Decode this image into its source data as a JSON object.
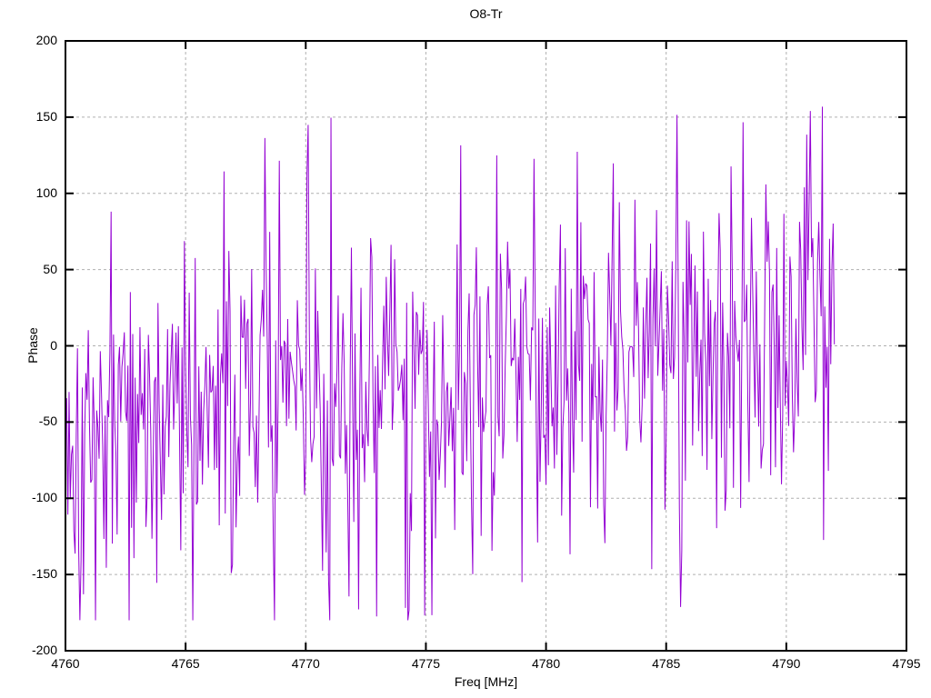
{
  "window": {
    "background_color": "#ffffff",
    "text_color": "#000000"
  },
  "chart_data": {
    "type": "line",
    "title": "O8-Tr",
    "xlabel": "Freq [MHz]",
    "ylabel": "Phase",
    "xlim": [
      4760,
      4795
    ],
    "ylim": [
      -200,
      200
    ],
    "x_ticks": [
      4760,
      4765,
      4770,
      4775,
      4780,
      4785,
      4790,
      4795
    ],
    "x_tick_labels": [
      "4760",
      "4765",
      "4770",
      "4775",
      "4780",
      "4785",
      "4790",
      "4795"
    ],
    "y_ticks": [
      -200,
      -150,
      -100,
      -50,
      0,
      50,
      100,
      150,
      200
    ],
    "y_tick_labels": [
      "-200",
      "-150",
      "-100",
      "-50",
      "0",
      "50",
      "100",
      "150",
      "200"
    ],
    "grid": true,
    "grid_style": "dashed",
    "legend_position": "none",
    "line_color": "#9400d3",
    "grid_color": "#b0b0b0",
    "axis_color": "#000000",
    "series": [
      {
        "name": "O8-Tr",
        "x_start": 4760.0,
        "x_end": 4792.0,
        "x_step": 0.05,
        "n_points": 641,
        "y_min_observed": -180,
        "y_max_observed": 180,
        "noise_model": {
          "seed": 1337,
          "sigma": 48,
          "bias_start": -48,
          "bias_end": 14,
          "outlier_prob": 0.17,
          "outlier_span": 180,
          "clip": 180
        }
      }
    ]
  }
}
